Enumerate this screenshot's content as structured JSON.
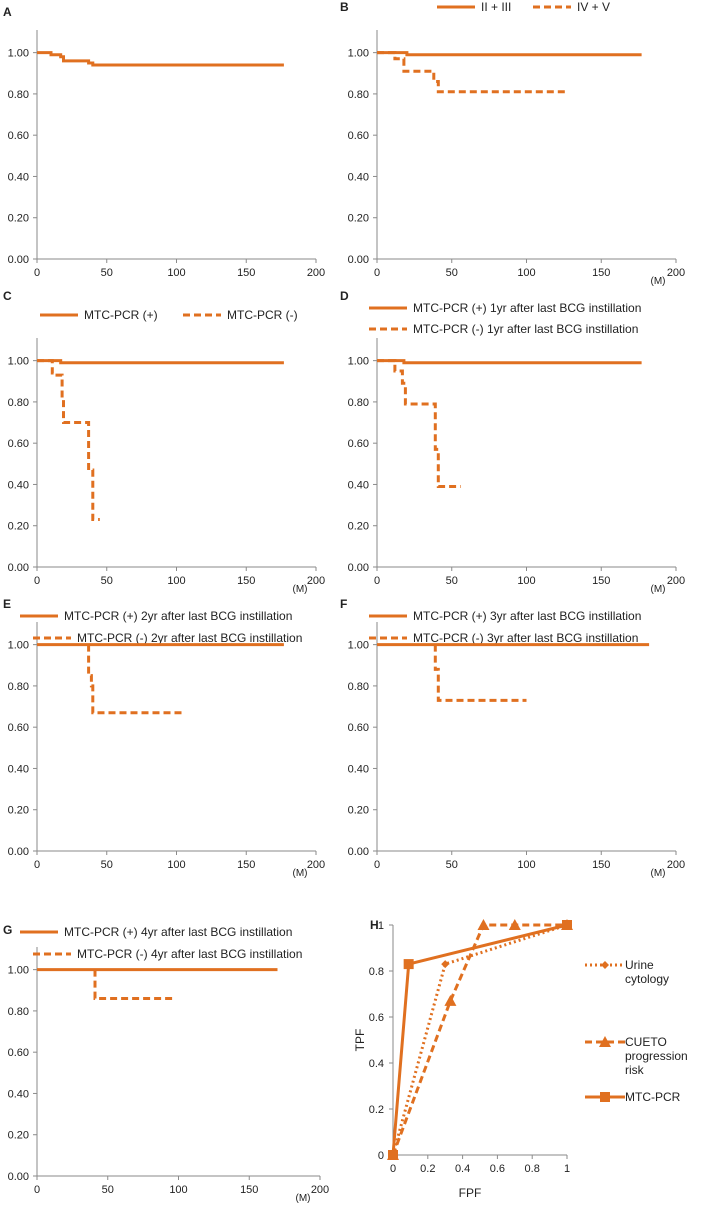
{
  "colors": {
    "accent": "#e07020",
    "axis": "#8a8a8a",
    "text": "#222222"
  },
  "chart_data": [
    {
      "id": "A",
      "type": "line",
      "letter": "A",
      "xlabel": "",
      "ylabel": "",
      "x_ticks": [
        "0",
        "50",
        "100",
        "150",
        "200"
      ],
      "y_ticks": [
        "0.00",
        "0.20",
        "0.40",
        "0.60",
        "0.80",
        "1.00"
      ],
      "xlim": [
        0,
        200
      ],
      "ylim": [
        0,
        1.1
      ],
      "x_unit": "",
      "legend": [],
      "series": [
        {
          "name": "",
          "style": "solid",
          "steps": [
            [
              0,
              1.0
            ],
            [
              10,
              1.0
            ],
            [
              10,
              0.99
            ],
            [
              17,
              0.99
            ],
            [
              17,
              0.98
            ],
            [
              19,
              0.98
            ],
            [
              19,
              0.96
            ],
            [
              37,
              0.96
            ],
            [
              37,
              0.95
            ],
            [
              40,
              0.95
            ],
            [
              40,
              0.94
            ],
            [
              177,
              0.94
            ]
          ]
        }
      ]
    },
    {
      "id": "B",
      "type": "line",
      "letter": "B",
      "xlabel": "",
      "ylabel": "",
      "x_ticks": [
        "0",
        "50",
        "100",
        "150",
        "200"
      ],
      "y_ticks": [
        "0.00",
        "0.20",
        "0.40",
        "0.60",
        "0.80",
        "1.00"
      ],
      "xlim": [
        0,
        200
      ],
      "ylim": [
        0,
        1.1
      ],
      "x_unit": "(M)",
      "legend": [
        "II + III",
        "IV + V"
      ],
      "series": [
        {
          "name": "II + III",
          "style": "solid",
          "steps": [
            [
              0,
              1.0
            ],
            [
              20,
              1.0
            ],
            [
              20,
              0.99
            ],
            [
              177,
              0.99
            ]
          ]
        },
        {
          "name": "IV + V",
          "style": "dashed",
          "steps": [
            [
              0,
              1.0
            ],
            [
              12,
              1.0
            ],
            [
              12,
              0.97
            ],
            [
              18,
              0.97
            ],
            [
              18,
              0.91
            ],
            [
              38,
              0.91
            ],
            [
              38,
              0.86
            ],
            [
              41,
              0.86
            ],
            [
              41,
              0.81
            ],
            [
              127,
              0.81
            ]
          ]
        }
      ]
    },
    {
      "id": "C",
      "type": "line",
      "letter": "C",
      "xlabel": "",
      "ylabel": "",
      "x_ticks": [
        "0",
        "50",
        "100",
        "150",
        "200"
      ],
      "y_ticks": [
        "0.00",
        "0.20",
        "0.40",
        "0.60",
        "0.80",
        "1.00"
      ],
      "xlim": [
        0,
        200
      ],
      "ylim": [
        0,
        1.1
      ],
      "x_unit": "(M)",
      "legend": [
        "MTC-PCR (+)",
        "MTC-PCR (-)"
      ],
      "series": [
        {
          "name": "MTC-PCR (+)",
          "style": "solid",
          "steps": [
            [
              0,
              1.0
            ],
            [
              17,
              1.0
            ],
            [
              17,
              0.99
            ],
            [
              177,
              0.99
            ]
          ]
        },
        {
          "name": "MTC-PCR (-)",
          "style": "dashed",
          "steps": [
            [
              0,
              1.0
            ],
            [
              11,
              1.0
            ],
            [
              11,
              0.94
            ],
            [
              13,
              0.94
            ],
            [
              13,
              0.93
            ],
            [
              18,
              0.93
            ],
            [
              18,
              0.82
            ],
            [
              19,
              0.82
            ],
            [
              19,
              0.7
            ],
            [
              37,
              0.7
            ],
            [
              37,
              0.47
            ],
            [
              40,
              0.47
            ],
            [
              40,
              0.23
            ],
            [
              45,
              0.23
            ]
          ]
        }
      ]
    },
    {
      "id": "D",
      "type": "line",
      "letter": "D",
      "xlabel": "",
      "ylabel": "",
      "x_ticks": [
        "0",
        "50",
        "100",
        "150",
        "200"
      ],
      "y_ticks": [
        "0.00",
        "0.20",
        "0.40",
        "0.60",
        "0.80",
        "1.00"
      ],
      "xlim": [
        0,
        200
      ],
      "ylim": [
        0,
        1.1
      ],
      "x_unit": "(M)",
      "legend": [
        "MTC-PCR (+) 1yr after last BCG instillation",
        "MTC-PCR (-) 1yr after last BCG instillation"
      ],
      "series": [
        {
          "name": "MTC-PCR (+) 1yr after last BCG instillation",
          "style": "solid",
          "steps": [
            [
              0,
              1.0
            ],
            [
              18,
              1.0
            ],
            [
              18,
              0.99
            ],
            [
              177,
              0.99
            ]
          ]
        },
        {
          "name": "MTC-PCR (-) 1yr after last BCG instillation",
          "style": "dashed",
          "steps": [
            [
              0,
              1.0
            ],
            [
              12,
              1.0
            ],
            [
              12,
              0.95
            ],
            [
              17,
              0.95
            ],
            [
              17,
              0.89
            ],
            [
              19,
              0.89
            ],
            [
              19,
              0.79
            ],
            [
              39,
              0.79
            ],
            [
              39,
              0.57
            ],
            [
              41,
              0.57
            ],
            [
              41,
              0.39
            ],
            [
              56,
              0.39
            ]
          ]
        }
      ]
    },
    {
      "id": "E",
      "type": "line",
      "letter": "E",
      "xlabel": "",
      "ylabel": "",
      "x_ticks": [
        "0",
        "50",
        "100",
        "150",
        "200"
      ],
      "y_ticks": [
        "0.00",
        "0.20",
        "0.40",
        "0.60",
        "0.80",
        "1.00"
      ],
      "xlim": [
        0,
        200
      ],
      "ylim": [
        0,
        1.1
      ],
      "x_unit": "(M)",
      "legend": [
        "MTC-PCR (+) 2yr after last BCG instillation",
        "MTC-PCR (-) 2yr after last BCG instillation"
      ],
      "series": [
        {
          "name": "MTC-PCR (+) 2yr after last BCG instillation",
          "style": "solid",
          "steps": [
            [
              0,
              1.0
            ],
            [
              177,
              1.0
            ]
          ]
        },
        {
          "name": "MTC-PCR (-) 2yr after last BCG instillation",
          "style": "dashed",
          "steps": [
            [
              37,
              1.0
            ],
            [
              37,
              0.85
            ],
            [
              39,
              0.85
            ],
            [
              39,
              0.8
            ],
            [
              40,
              0.8
            ],
            [
              40,
              0.67
            ],
            [
              106,
              0.67
            ]
          ]
        }
      ]
    },
    {
      "id": "F",
      "type": "line",
      "letter": "F",
      "xlabel": "",
      "ylabel": "",
      "x_ticks": [
        "0",
        "50",
        "100",
        "150",
        "200"
      ],
      "y_ticks": [
        "0.00",
        "0.20",
        "0.40",
        "0.60",
        "0.80",
        "1.00"
      ],
      "xlim": [
        0,
        200
      ],
      "ylim": [
        0,
        1.1
      ],
      "x_unit": "(M)",
      "legend": [
        "MTC-PCR (+) 3yr after last BCG instillation",
        "MTC-PCR (-) 3yr after last BCG instillation"
      ],
      "series": [
        {
          "name": "MTC-PCR (+) 3yr after last BCG instillation",
          "style": "solid",
          "steps": [
            [
              0,
              1.0
            ],
            [
              182,
              1.0
            ]
          ]
        },
        {
          "name": "MTC-PCR (-) 3yr after last BCG instillation",
          "style": "dashed",
          "steps": [
            [
              39,
              1.0
            ],
            [
              39,
              0.88
            ],
            [
              41,
              0.88
            ],
            [
              41,
              0.73
            ],
            [
              100,
              0.73
            ]
          ]
        }
      ]
    },
    {
      "id": "G",
      "type": "line",
      "letter": "G",
      "xlabel": "",
      "ylabel": "",
      "x_ticks": [
        "0",
        "50",
        "100",
        "150",
        "200"
      ],
      "y_ticks": [
        "0.00",
        "0.20",
        "0.40",
        "0.60",
        "0.80",
        "1.00"
      ],
      "xlim": [
        0,
        200
      ],
      "ylim": [
        0,
        1.1
      ],
      "x_unit": "(M)",
      "legend": [
        "MTC-PCR (+) 4yr after last BCG instillation",
        "MTC-PCR (-) 4yr after last BCG instillation"
      ],
      "series": [
        {
          "name": "MTC-PCR (+) 4yr after last BCG instillation",
          "style": "solid",
          "steps": [
            [
              0,
              1.0
            ],
            [
              170,
              1.0
            ]
          ]
        },
        {
          "name": "MTC-PCR (-) 4yr after last BCG instillation",
          "style": "dashed",
          "steps": [
            [
              41,
              1.0
            ],
            [
              41,
              0.86
            ],
            [
              98,
              0.86
            ]
          ]
        }
      ]
    },
    {
      "id": "H",
      "type": "line",
      "letter": "H",
      "xlabel": "FPF",
      "ylabel": "TPF",
      "x_ticks": [
        "0",
        "0.2",
        "0.4",
        "0.6",
        "0.8",
        "1"
      ],
      "y_ticks": [
        "0",
        "0.2",
        "0.4",
        "0.6",
        "0.8",
        "1"
      ],
      "xlim": [
        0,
        1
      ],
      "ylim": [
        0,
        1
      ],
      "series": [
        {
          "name": "Urine cytology",
          "name_lines": [
            "Urine",
            "cytology"
          ],
          "style": "dotted",
          "marker": "diamond",
          "points": [
            [
              0,
              0
            ],
            [
              0.3,
              0.83
            ],
            [
              1,
              1
            ]
          ]
        },
        {
          "name": "CUETO progression risk",
          "name_lines": [
            "CUETO",
            "progression",
            "risk"
          ],
          "style": "dashed",
          "marker": "triangle",
          "points": [
            [
              0,
              0
            ],
            [
              0.33,
              0.67
            ],
            [
              0.52,
              1
            ],
            [
              0.7,
              1
            ],
            [
              1,
              1
            ]
          ]
        },
        {
          "name": "MTC-PCR",
          "name_lines": [
            "MTC-PCR"
          ],
          "style": "solid",
          "marker": "square",
          "points": [
            [
              0,
              0
            ],
            [
              0.09,
              0.83
            ],
            [
              1,
              1
            ]
          ]
        }
      ]
    }
  ]
}
